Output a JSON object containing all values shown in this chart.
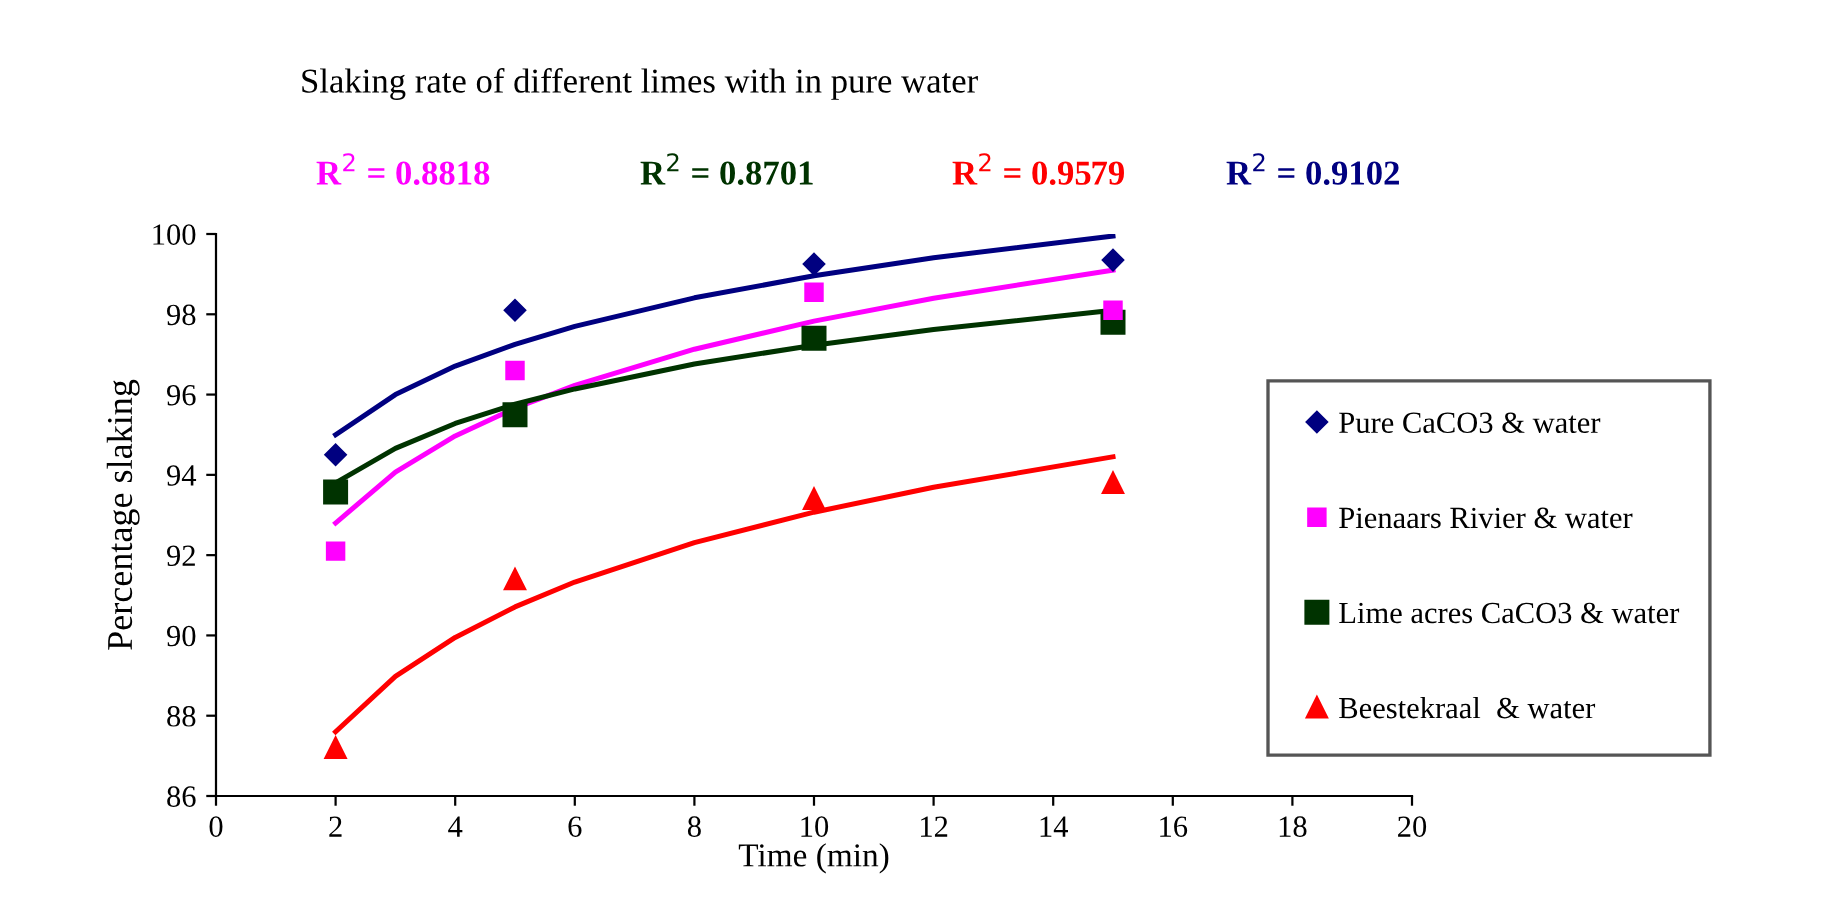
{
  "chart_data": {
    "type": "scatter",
    "title": "Slaking rate of different limes with in pure water",
    "xlabel": "Time (min)",
    "ylabel": "Percentage slaking",
    "xlim": [
      0,
      20
    ],
    "xticks": [
      0,
      2,
      4,
      6,
      8,
      10,
      12,
      14,
      16,
      18,
      20
    ],
    "ylim": [
      86,
      100
    ],
    "yticks": [
      86,
      88,
      90,
      92,
      94,
      96,
      98,
      100
    ],
    "grid": false,
    "legend": "right",
    "series": [
      {
        "name": "Pure CaCO3 & water",
        "color": "#000080",
        "marker": "diamond",
        "x": [
          2,
          5,
          10,
          15
        ],
        "values": [
          94.5,
          98.1,
          99.25,
          99.35
        ]
      },
      {
        "name": "Pienaars Rivier & water",
        "color": "#ff00ff",
        "marker": "square",
        "x": [
          2,
          5,
          10,
          15
        ],
        "values": [
          92.1,
          96.6,
          98.55,
          98.1
        ]
      },
      {
        "name": "Lime acres CaCO3 & water",
        "color": "#003300",
        "marker": "square",
        "x": [
          2,
          5,
          10,
          15
        ],
        "values": [
          93.57,
          95.5,
          97.4,
          97.8
        ]
      },
      {
        "name": "Beestekraal  & water",
        "color": "#ff0000",
        "marker": "triangle",
        "x": [
          2,
          5,
          10,
          15
        ],
        "values": [
          87.2,
          91.4,
          93.4,
          93.8
        ]
      },
      {
        "type": "line",
        "color": "#ff00ff",
        "marker": "none",
        "x": [
          2,
          3,
          4,
          5,
          6,
          8,
          10,
          12,
          15
        ],
        "values": [
          92.8,
          94.07,
          94.97,
          95.66,
          96.23,
          97.13,
          97.83,
          98.4,
          99.1
        ]
      },
      {
        "type": "line",
        "color": "#003300",
        "marker": "none",
        "x": [
          2,
          3,
          4,
          5,
          6,
          8,
          10,
          12,
          15
        ],
        "values": [
          93.8,
          94.66,
          95.28,
          95.76,
          96.14,
          96.76,
          97.23,
          97.62,
          98.1
        ]
      },
      {
        "type": "line",
        "color": "#ff0000",
        "marker": "none",
        "x": [
          2,
          3,
          4,
          5,
          6,
          8,
          10,
          12,
          15
        ],
        "values": [
          87.6,
          88.98,
          89.95,
          90.71,
          91.33,
          92.31,
          93.07,
          93.69,
          94.45
        ]
      },
      {
        "type": "line",
        "color": "#000080",
        "marker": "none",
        "x": [
          2,
          3,
          4,
          5,
          6,
          8,
          10,
          12,
          15
        ],
        "values": [
          95.0,
          96.0,
          96.71,
          97.25,
          97.7,
          98.41,
          98.96,
          99.41,
          99.95
        ]
      }
    ],
    "annotations": [
      "R$^{2}$ = 0.8818",
      "R$^{2}$ = 0.8701",
      "R$^{2}$ = 0.9579",
      "R$^{2}$ = 0.9102"
    ]
  }
}
